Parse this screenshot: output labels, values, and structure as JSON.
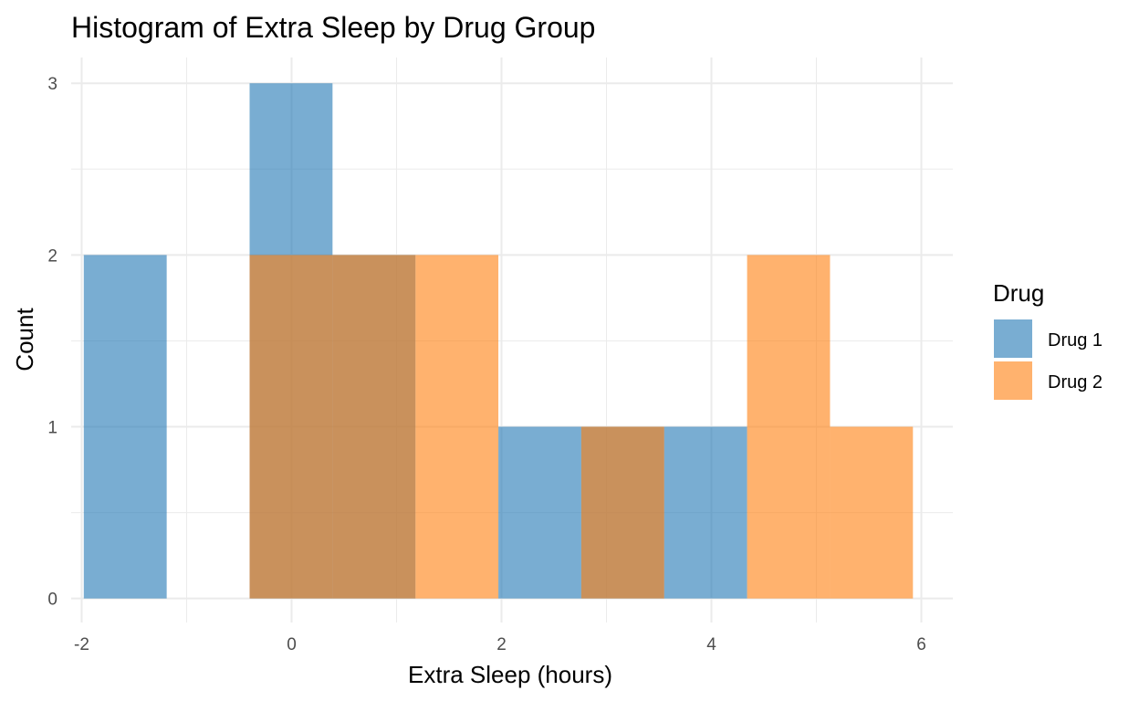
{
  "chart_data": {
    "type": "bar",
    "title": "Histogram of Extra Sleep by Drug Group",
    "xlabel": "Extra Sleep (hours)",
    "ylabel": "Count",
    "xlim": [
      -2.1,
      6.3
    ],
    "ylim": [
      -0.14,
      3.15
    ],
    "xticks": [
      -2,
      0,
      2,
      4,
      6
    ],
    "yticks": [
      0,
      1,
      2,
      3
    ],
    "grid": true,
    "bin_edges": [
      -1.98,
      -1.19,
      -0.4,
      0.39,
      1.18,
      1.97,
      2.76,
      3.55,
      4.34,
      5.13,
      5.92
    ],
    "legend": {
      "title": "Drug",
      "position": "right"
    },
    "series": [
      {
        "name": "Drug 1",
        "color": "#1f77b4",
        "counts": [
          2,
          0,
          3,
          2,
          0,
          1,
          1,
          1,
          0,
          0
        ]
      },
      {
        "name": "Drug 2",
        "color": "#ff7f0e",
        "counts": [
          0,
          0,
          2,
          2,
          2,
          0,
          1,
          0,
          2,
          1
        ]
      }
    ],
    "opacity": 0.6
  }
}
